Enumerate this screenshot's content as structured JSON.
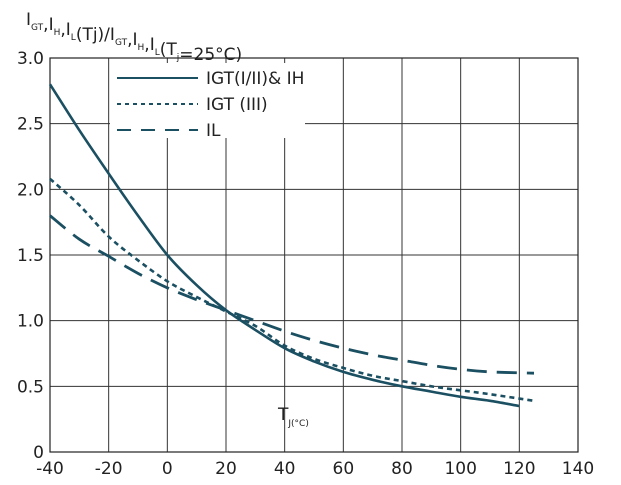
{
  "chart_data": {
    "type": "line",
    "title": {
      "parts": [
        {
          "t": "I",
          "sub": "GT"
        },
        {
          "t": ",I",
          "sub": "H"
        },
        {
          "t": ",I",
          "sub": "L"
        },
        {
          "t": "(Tj)/I",
          "sub": "GT"
        },
        {
          "t": ",I",
          "sub": "H"
        },
        {
          "t": ",I",
          "sub": "L"
        },
        {
          "t": "(T",
          "sub": "j"
        },
        {
          "t": "=25°C)",
          "sub": ""
        }
      ]
    },
    "xlabel": {
      "main": "T",
      "sub": "J(°C)"
    },
    "xlim": [
      -40,
      140
    ],
    "ylim": [
      0,
      3.0
    ],
    "x_ticks": [
      "-40",
      "-20",
      "0",
      "20",
      "40",
      "60",
      "80",
      "100",
      "120",
      "140"
    ],
    "y_ticks": [
      "0",
      "0.5",
      "1.0",
      "1.5",
      "2.0",
      "2.5",
      "3.0"
    ],
    "grid": true,
    "legend_position": "top-left",
    "color": "#1b4f62",
    "series": [
      {
        "name": "IGT(I/II)& IH",
        "style": "solid",
        "x": [
          -40,
          -30,
          -20,
          -10,
          0,
          10,
          20,
          30,
          40,
          50,
          60,
          70,
          80,
          90,
          100,
          110,
          120
        ],
        "y": [
          2.8,
          2.45,
          2.12,
          1.8,
          1.5,
          1.27,
          1.08,
          0.93,
          0.79,
          0.69,
          0.61,
          0.55,
          0.5,
          0.46,
          0.42,
          0.39,
          0.35
        ]
      },
      {
        "name": "IGT (III)",
        "style": "dotted",
        "x": [
          -40,
          -30,
          -20,
          -10,
          0,
          10,
          20,
          30,
          40,
          50,
          60,
          70,
          80,
          90,
          100,
          110,
          125
        ],
        "y": [
          2.08,
          1.88,
          1.64,
          1.46,
          1.3,
          1.18,
          1.07,
          0.96,
          0.81,
          0.71,
          0.64,
          0.58,
          0.54,
          0.5,
          0.47,
          0.44,
          0.39
        ]
      },
      {
        "name": "IL",
        "style": "dashed",
        "x": [
          -40,
          -30,
          -20,
          -10,
          0,
          10,
          20,
          30,
          40,
          50,
          60,
          70,
          80,
          90,
          100,
          110,
          125
        ],
        "y": [
          1.8,
          1.62,
          1.49,
          1.36,
          1.25,
          1.16,
          1.08,
          1.0,
          0.92,
          0.85,
          0.79,
          0.74,
          0.7,
          0.66,
          0.63,
          0.61,
          0.6
        ]
      }
    ]
  }
}
